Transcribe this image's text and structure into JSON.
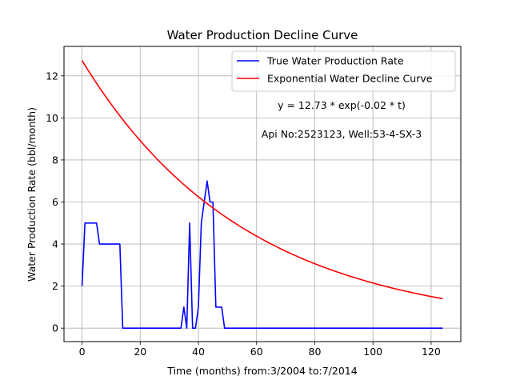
{
  "chart_data": {
    "type": "line",
    "title": "Water Production Decline Curve",
    "xlabel": "Time (months) from:3/2004 to:7/2014",
    "ylabel": "Water Production Rate (bbl/month)",
    "xlim": [
      -6.2,
      130.2
    ],
    "ylim": [
      -0.64,
      13.4
    ],
    "xticks": [
      0,
      20,
      40,
      60,
      80,
      100,
      120
    ],
    "yticks": [
      0,
      2,
      4,
      6,
      8,
      10,
      12
    ],
    "grid": true,
    "legend_position": "top-right",
    "annotations": [
      "y = 12.73 * exp(-0.02 * t)",
      "Api No:2523123, Well:53-4-SX-3"
    ],
    "series": [
      {
        "name": "True Water Production Rate",
        "color": "#0000ff",
        "kind": "points",
        "x": [
          0,
          1,
          2,
          3,
          4,
          5,
          6,
          7,
          8,
          9,
          10,
          11,
          12,
          13,
          14,
          15,
          16,
          17,
          18,
          19,
          20,
          21,
          22,
          23,
          24,
          25,
          26,
          27,
          28,
          29,
          30,
          31,
          32,
          33,
          34,
          35,
          36,
          37,
          38,
          39,
          40,
          41,
          42,
          43,
          44,
          45,
          46,
          47,
          48,
          49,
          50,
          124
        ],
        "y": [
          2,
          5,
          5,
          5,
          5,
          5,
          4,
          4,
          4,
          4,
          4,
          4,
          4,
          4,
          0,
          0,
          0,
          0,
          0,
          0,
          0,
          0,
          0,
          0,
          0,
          0,
          0,
          0,
          0,
          0,
          0,
          0,
          0,
          0,
          0,
          1,
          0,
          5,
          0,
          0,
          1,
          5,
          6,
          7,
          6,
          6,
          1,
          1,
          1,
          0,
          0,
          0
        ]
      },
      {
        "name": "Exponential Water Decline Curve",
        "color": "#ff0000",
        "kind": "function",
        "a": 12.73,
        "b": 0.0178,
        "x_range": [
          0,
          124
        ]
      }
    ]
  }
}
